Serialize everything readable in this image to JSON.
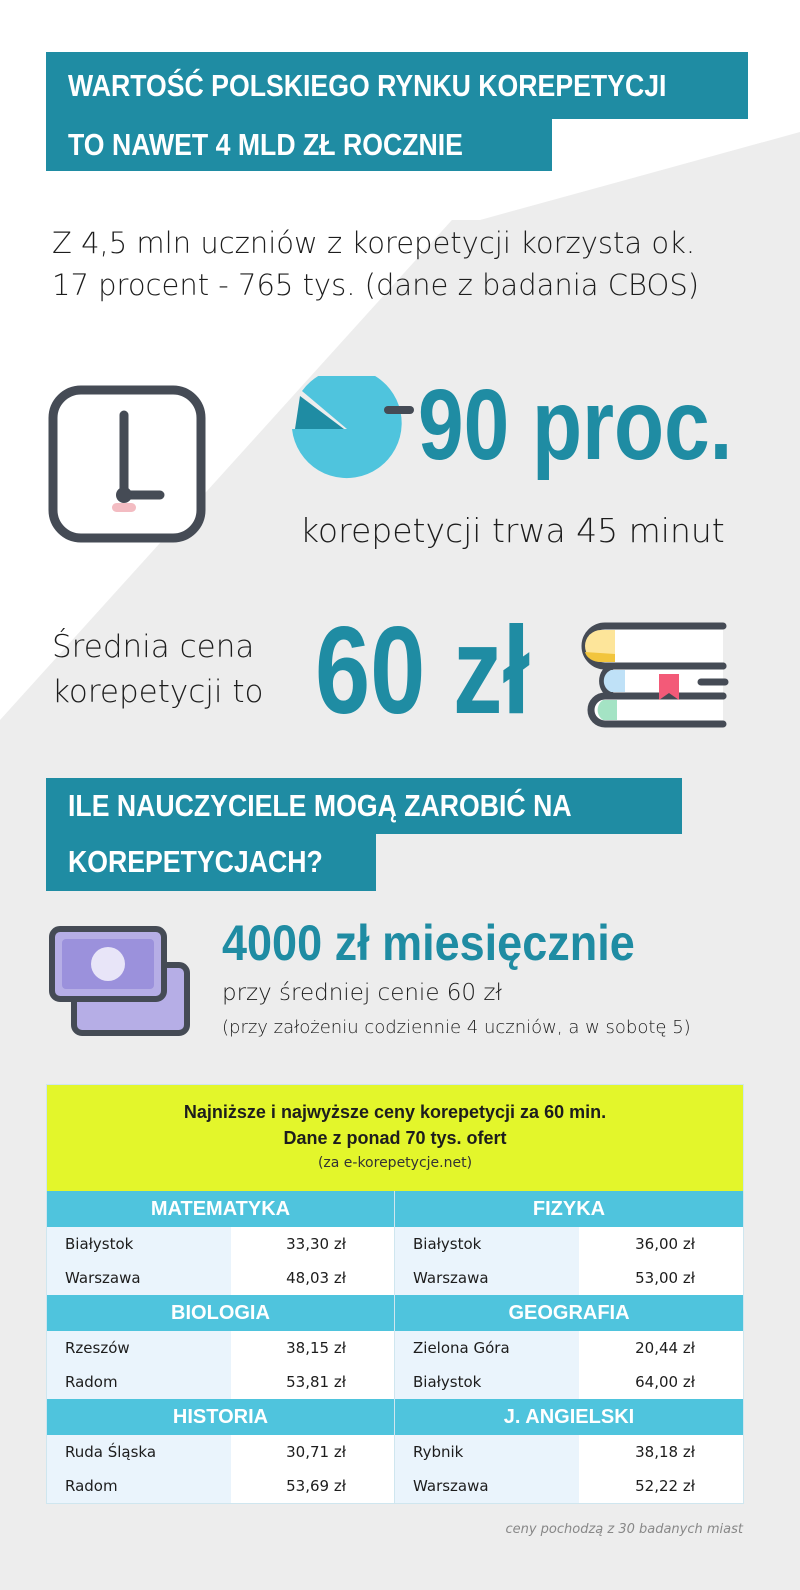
{
  "header": {
    "line1": "WARTOŚĆ POLSKIEGO RYNKU KOREPETYCJI",
    "line2": "TO NAWET 4 MLD ZŁ ROCZNIE"
  },
  "intro": {
    "line1": "Z 4,5 mln uczniów z korepetycji korzysta ok.",
    "line2": "17 procent - 765 tys. (dane z badania CBOS)"
  },
  "duration": {
    "value": "90 proc.",
    "caption": "korepetycji trwa 45 minut",
    "icon": "clock-icon"
  },
  "price": {
    "line1": "Średnia cena",
    "line2": "korepetycji to",
    "value": "60 zł",
    "icon": "books-icon"
  },
  "section2": {
    "line1": "ILE NAUCZYCIELE MOGĄ ZAROBIĆ NA",
    "line2": "KOREPETYCJACH?"
  },
  "earnings": {
    "value": "4000 zł miesięcznie",
    "line1": "przy średniej cenie 60 zł",
    "line2": "(przy założeniu codziennie 4 uczniów, a w sobotę 5)",
    "icon": "money-icon"
  },
  "table": {
    "title1": "Najniższe i najwyższe ceny korepetycji za 60 min.",
    "title2": "Dane z ponad 70 tys. ofert",
    "source": "(za e-korepetycje.net)",
    "subjects": [
      {
        "name": "MATEMATYKA",
        "rows": [
          {
            "city": "Białystok",
            "price": "33,30 zł"
          },
          {
            "city": "Warszawa",
            "price": "48,03 zł"
          }
        ]
      },
      {
        "name": "FIZYKA",
        "rows": [
          {
            "city": "Białystok",
            "price": "36,00 zł"
          },
          {
            "city": "Warszawa",
            "price": "53,00 zł"
          }
        ]
      },
      {
        "name": "BIOLOGIA",
        "rows": [
          {
            "city": "Rzeszów",
            "price": "38,15 zł"
          },
          {
            "city": "Radom",
            "price": "53,81 zł"
          }
        ]
      },
      {
        "name": "GEOGRAFIA",
        "rows": [
          {
            "city": "Zielona Góra",
            "price": "20,44 zł"
          },
          {
            "city": "Białystok",
            "price": "64,00 zł"
          }
        ]
      },
      {
        "name": "HISTORIA",
        "rows": [
          {
            "city": "Ruda Śląska",
            "price": "30,71 zł"
          },
          {
            "city": "Radom",
            "price": "53,69 zł"
          }
        ]
      },
      {
        "name": "J. ANGIELSKI",
        "rows": [
          {
            "city": "Rybnik",
            "price": "38,18 zł"
          },
          {
            "city": "Warszawa",
            "price": "52,22 zł"
          }
        ]
      }
    ],
    "footnote": "ceny pochodzą z 30 badanych miast"
  },
  "colors": {
    "teal": "#1f8ca3",
    "light_blue": "#4fc4dd",
    "lime": "#e3f62b"
  }
}
